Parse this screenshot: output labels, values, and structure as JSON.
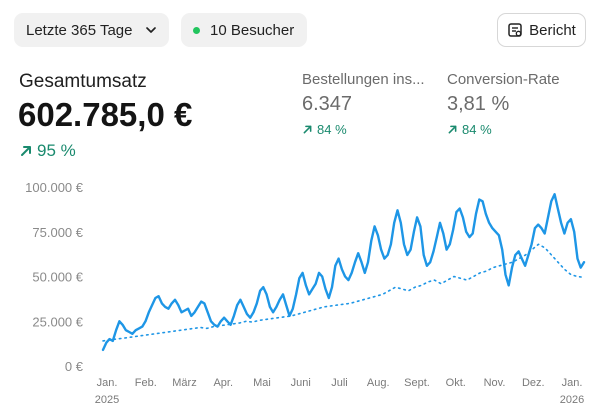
{
  "toolbar": {
    "range_label": "Letzte 365 Tage",
    "visitors_label": "10 Besucher",
    "visitors_dot_color": "#22c55e",
    "report_label": "Bericht",
    "report_icon": "report-icon",
    "range_icon": "chevron-down-icon"
  },
  "metrics": {
    "main": {
      "label": "Gesamtumsatz",
      "value": "602.785,0 €",
      "change": "95 %",
      "change_icon": "arrow-up-right-icon"
    },
    "orders": {
      "label": "Bestellungen ins...",
      "value": "6.347",
      "change": "84 %",
      "change_icon": "arrow-up-right-icon"
    },
    "conversion": {
      "label": "Conversion-Rate",
      "value": "3,81 %",
      "change": "84 %",
      "change_icon": "arrow-up-right-icon"
    }
  },
  "colors": {
    "accent": "#1e96e6",
    "positive": "#1a8a6e"
  },
  "chart_data": {
    "type": "line",
    "ylim": [
      0,
      100000
    ],
    "y_ticks": [
      "100.000 €",
      "75.000 €",
      "50.000 €",
      "25.000 €",
      "0 €"
    ],
    "x_tick_labels": [
      "Jan.",
      "Feb.",
      "März",
      "Apr.",
      "Mai",
      "Juni",
      "Juli",
      "Aug.",
      "Sept.",
      "Okt.",
      "Nov.",
      "Dez.",
      "Jan."
    ],
    "x_year_labels": {
      "first": "2025",
      "last": "2026"
    },
    "series": [
      {
        "style": "solid",
        "values": [
          9000,
          13000,
          15000,
          14000,
          20000,
          25000,
          23000,
          20000,
          19000,
          18000,
          20000,
          21000,
          22000,
          25000,
          30000,
          34000,
          38000,
          39000,
          35000,
          33000,
          32000,
          35000,
          37000,
          34000,
          30000,
          31000,
          32000,
          28000,
          30000,
          33000,
          36000,
          35000,
          30000,
          25000,
          23000,
          22000,
          25000,
          27000,
          25000,
          23000,
          28000,
          34000,
          37000,
          33000,
          29000,
          27000,
          30000,
          35000,
          42000,
          44000,
          40000,
          33000,
          30000,
          33000,
          37000,
          40000,
          34000,
          28000,
          32000,
          40000,
          49000,
          52000,
          45000,
          40000,
          43000,
          46000,
          52000,
          50000,
          43000,
          38000,
          44000,
          56000,
          60000,
          54000,
          50000,
          48000,
          52000,
          58000,
          63000,
          58000,
          52000,
          58000,
          70000,
          78000,
          73000,
          65000,
          60000,
          62000,
          68000,
          80000,
          87000,
          80000,
          68000,
          62000,
          65000,
          75000,
          83000,
          78000,
          62000,
          56000,
          58000,
          64000,
          72000,
          80000,
          74000,
          65000,
          68000,
          76000,
          86000,
          88000,
          83000,
          75000,
          72000,
          74000,
          85000,
          93000,
          92000,
          85000,
          80000,
          77000,
          75000,
          73000,
          65000,
          51000,
          45000,
          55000,
          62000,
          64000,
          60000,
          56000,
          62000,
          68000,
          77000,
          79000,
          77000,
          74000,
          83000,
          92000,
          96000,
          88000,
          80000,
          74000,
          80000,
          82000,
          75000,
          60000,
          55000,
          58000
        ]
      },
      {
        "style": "dotted",
        "values": [
          14000,
          14500,
          15000,
          15500,
          16000,
          16500,
          17000,
          17500,
          18000,
          18500,
          19000,
          19500,
          20000,
          20500,
          21000,
          21500,
          21000,
          22000,
          22500,
          23000,
          23500,
          24000,
          25000,
          24500,
          25500,
          26000,
          26500,
          27000,
          27500,
          28000,
          29000,
          30000,
          31000,
          32000,
          33000,
          33500,
          34000,
          34500,
          35000,
          36000,
          37000,
          38000,
          39000,
          40000,
          42000,
          44000,
          43000,
          42000,
          44000,
          45000,
          47000,
          48000,
          46000,
          48000,
          50000,
          49000,
          48000,
          50000,
          52000,
          53000,
          55000,
          56000,
          57000,
          58000,
          60000,
          62000,
          65000,
          68000,
          66000,
          62000,
          58000,
          54000,
          51000,
          50000,
          49500
        ]
      }
    ]
  }
}
